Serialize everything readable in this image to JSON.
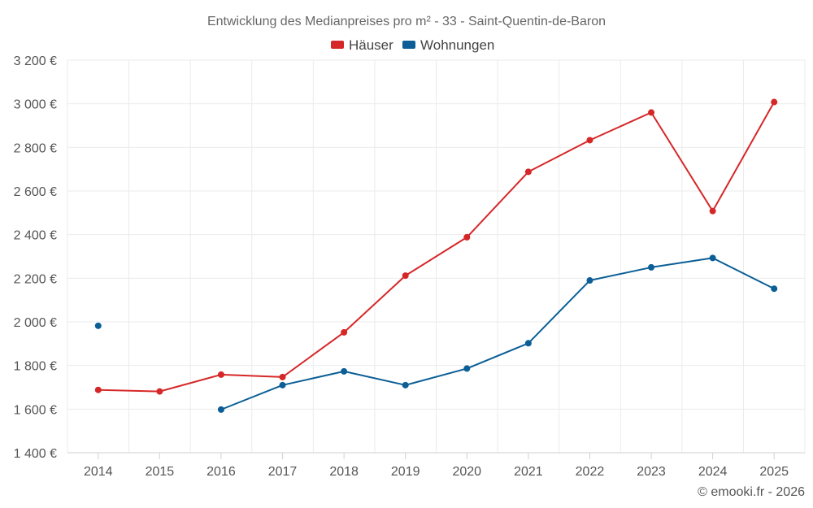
{
  "chart_data": {
    "type": "line",
    "title": "Entwicklung des Medianpreises pro m² - 33 - Saint-Quentin-de-Baron",
    "categories": [
      "2014",
      "2015",
      "2016",
      "2017",
      "2018",
      "2019",
      "2020",
      "2021",
      "2022",
      "2023",
      "2024",
      "2025"
    ],
    "y_tick_labels": [
      "1 400 €",
      "1 600 €",
      "1 800 €",
      "2 000 €",
      "2 200 €",
      "2 400 €",
      "2 600 €",
      "2 800 €",
      "3 000 €",
      "3 200 €"
    ],
    "y_ticks": [
      1400,
      1600,
      1800,
      2000,
      2200,
      2400,
      2600,
      2800,
      3000,
      3200
    ],
    "ylim": [
      1400,
      3200
    ],
    "xlabel": "",
    "ylabel": "",
    "grid": true,
    "legend_position": "top-center",
    "series": [
      {
        "name": "Häuser",
        "color": "#d62728",
        "values": [
          1688,
          1681,
          1758,
          1747,
          1952,
          2212,
          2388,
          2688,
          2833,
          2960,
          2508,
          3008
        ]
      },
      {
        "name": "Wohnungen",
        "color": "#0b5f96",
        "values": [
          1982,
          null,
          1598,
          1710,
          1773,
          1710,
          1786,
          1902,
          2190,
          2250,
          2293,
          2152
        ]
      }
    ]
  },
  "credit": "© emooki.fr - 2026"
}
